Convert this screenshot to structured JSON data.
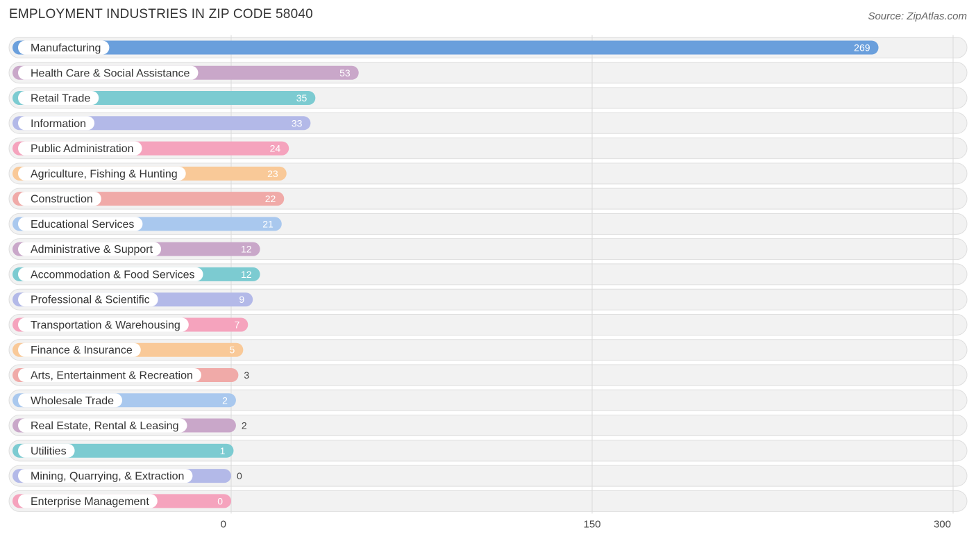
{
  "header": {
    "title": "EMPLOYMENT INDUSTRIES IN ZIP CODE 58040",
    "source": "Source: ZipAtlas.com"
  },
  "chart_data": {
    "type": "bar",
    "orientation": "horizontal",
    "title": "EMPLOYMENT INDUSTRIES IN ZIP CODE 58040",
    "xlabel": "",
    "ylabel": "",
    "xlim": [
      0,
      300
    ],
    "ticks": [
      0,
      150,
      300
    ],
    "tick_labels": [
      "0",
      "150",
      "300"
    ],
    "grid": true,
    "categories": [
      "Manufacturing",
      "Health Care & Social Assistance",
      "Retail Trade",
      "Information",
      "Public Administration",
      "Agriculture, Fishing & Hunting",
      "Construction",
      "Educational Services",
      "Administrative & Support",
      "Accommodation & Food Services",
      "Professional & Scientific",
      "Transportation & Warehousing",
      "Finance & Insurance",
      "Arts, Entertainment & Recreation",
      "Wholesale Trade",
      "Real Estate, Rental & Leasing",
      "Utilities",
      "Mining, Quarrying, & Extraction",
      "Enterprise Management"
    ],
    "values": [
      269,
      53,
      35,
      33,
      24,
      23,
      22,
      21,
      12,
      12,
      9,
      7,
      5,
      3,
      2,
      2,
      1,
      0,
      0
    ],
    "value_labels": [
      "269",
      "53",
      "35",
      "33",
      "24",
      "23",
      "22",
      "21",
      "12",
      "12",
      "9",
      "7",
      "5",
      "3",
      "2",
      "2",
      "1",
      "0",
      "0"
    ],
    "colors": [
      "#6a9fdc",
      "#c9a7c9",
      "#7ccbd1",
      "#b3b9e8",
      "#f5a3bd",
      "#f9c998",
      "#f0aaa8",
      "#a9c8ee",
      "#c9a7c9",
      "#7ccbd1",
      "#b3b9e8",
      "#f5a3bd",
      "#f9c998",
      "#f0aaa8",
      "#a9c8ee",
      "#c9a7c9",
      "#7ccbd1",
      "#b3b9e8",
      "#f5a3bd"
    ]
  }
}
